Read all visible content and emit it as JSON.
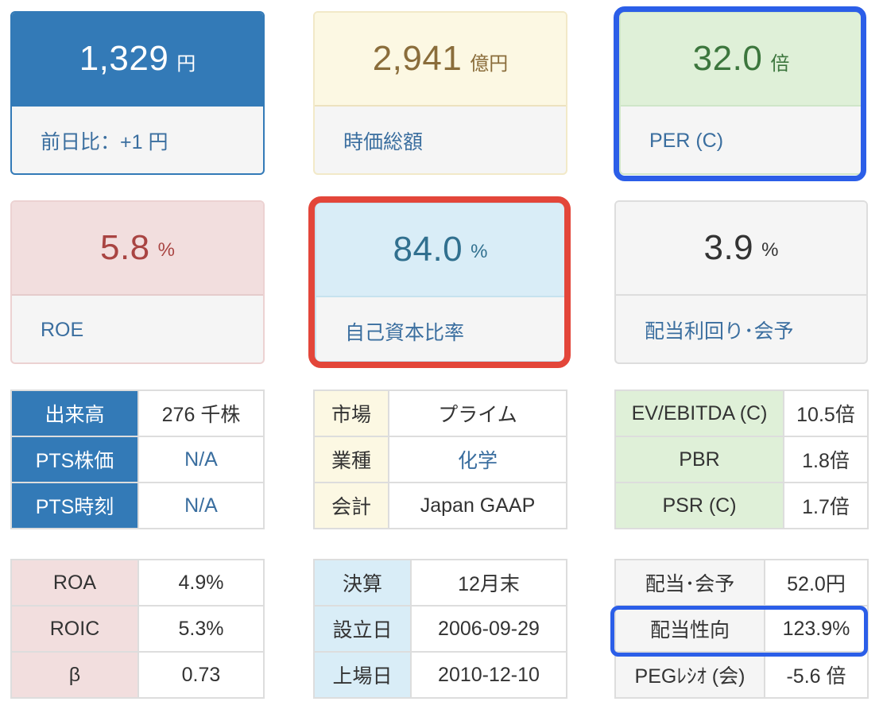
{
  "cards": [
    {
      "value": "1,329",
      "unit": "円",
      "label": "前日比：+1 円",
      "color": "#337ab7"
    },
    {
      "value": "2,941",
      "unit": "億円",
      "label": "時価総額",
      "color": "#fcf8e3"
    },
    {
      "value": "32.0",
      "unit": "倍",
      "label": "PER (C)",
      "color": "#dff0d8"
    },
    {
      "value": "5.8",
      "unit": "%",
      "label": "ROE",
      "color": "#f2dede"
    },
    {
      "value": "84.0",
      "unit": "%",
      "label": "自己資本比率",
      "color": "#d9edf7"
    },
    {
      "value": "3.9",
      "unit": "%",
      "label": "配当利回り･会予",
      "color": "#f5f5f5"
    }
  ],
  "tables": {
    "trading": [
      {
        "label": "出来高",
        "value": "276 千株"
      },
      {
        "label": "PTS株価",
        "value": "N/A"
      },
      {
        "label": "PTS時刻",
        "value": "N/A"
      }
    ],
    "market": [
      {
        "label": "市場",
        "value": "プライム"
      },
      {
        "label": "業種",
        "value": "化学"
      },
      {
        "label": "会計",
        "value": "Japan GAAP"
      }
    ],
    "valuation": [
      {
        "label": "EV/EBITDA (C)",
        "value": "10.5倍"
      },
      {
        "label": "PBR",
        "value": "1.8倍"
      },
      {
        "label": "PSR (C)",
        "value": "1.7倍"
      }
    ],
    "returns": [
      {
        "label": "ROA",
        "value": "4.9%"
      },
      {
        "label": "ROIC",
        "value": "5.3%"
      },
      {
        "label": "β",
        "value": "0.73"
      }
    ],
    "company": [
      {
        "label": "決算",
        "value": "12月末"
      },
      {
        "label": "設立日",
        "value": "2006-09-29"
      },
      {
        "label": "上場日",
        "value": "2010-12-10"
      }
    ],
    "dividend": [
      {
        "label": "配当･会予",
        "value": "52.0円"
      },
      {
        "label": "配当性向",
        "value": "123.9%"
      },
      {
        "label": "PEGﾚｼｵ (会)",
        "value": "-5.6 倍"
      }
    ]
  },
  "highlight_colors": {
    "blue": "#2b5ee8",
    "red": "#e3463a"
  }
}
